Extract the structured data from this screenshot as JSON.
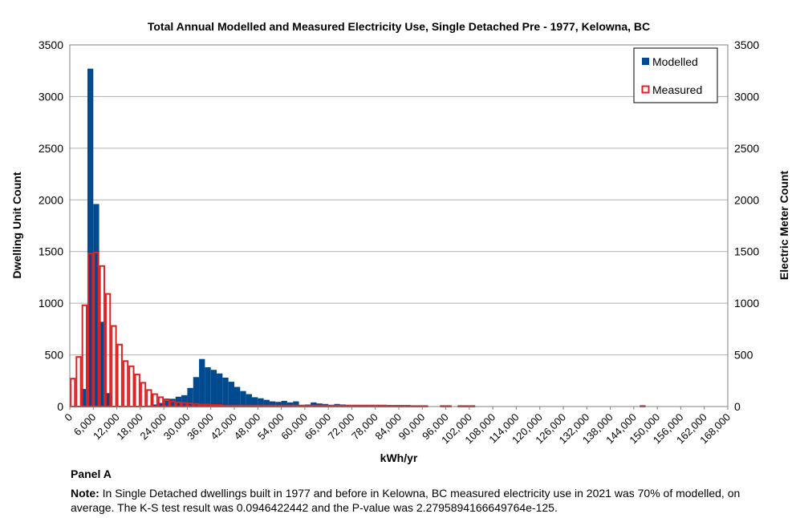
{
  "chart_data": {
    "type": "bar",
    "title": "Total Annual Modelled and Measured Electricity Use, Single Detached Pre - 1977, Kelowna, BC",
    "xlabel": "kWh/yr",
    "ylabel": "Dwelling Unit Count",
    "y2label": "Electric Meter Count",
    "bin_width": 1500,
    "xlim": [
      0,
      168000
    ],
    "ylim": [
      0,
      3500
    ],
    "y2lim": [
      0,
      3500
    ],
    "x_ticks": [
      "0",
      "6,000",
      "12,000",
      "18,000",
      "24,000",
      "30,000",
      "36,000",
      "42,000",
      "48,000",
      "54,000",
      "60,000",
      "66,000",
      "72,000",
      "78,000",
      "84,000",
      "90,000",
      "96,000",
      "102,000",
      "108,000",
      "114,000",
      "120,000",
      "126,000",
      "132,000",
      "138,000",
      "144,000",
      "150,000",
      "156,000",
      "162,000",
      "168,000"
    ],
    "y_ticks": [
      "0",
      "500",
      "1000",
      "1500",
      "2000",
      "2500",
      "3000",
      "3500"
    ],
    "grid": true,
    "legend_position": "top-right",
    "series": [
      {
        "name": "Modelled",
        "color": "#004a8f",
        "bin_start": [
          3000,
          4500,
          6000,
          7500,
          9000,
          18000,
          19500,
          21000,
          22500,
          24000,
          25500,
          27000,
          28500,
          30000,
          31500,
          33000,
          34500,
          36000,
          37500,
          39000,
          40500,
          42000,
          43500,
          45000,
          46500,
          48000,
          49500,
          51000,
          52500,
          54000,
          55500,
          57000,
          58500,
          60000,
          61500,
          63000,
          64500,
          66000,
          67500,
          69000,
          70500,
          72000,
          73500,
          75000,
          76500,
          78000,
          79500,
          81000,
          82500,
          84000,
          85500,
          87000,
          88500
        ],
        "values": [
          170,
          3270,
          1960,
          820,
          130,
          5,
          10,
          20,
          35,
          60,
          75,
          95,
          110,
          180,
          285,
          460,
          380,
          355,
          320,
          280,
          240,
          190,
          150,
          120,
          90,
          80,
          65,
          50,
          45,
          55,
          40,
          50,
          15,
          20,
          40,
          30,
          25,
          15,
          25,
          20,
          15,
          15,
          10,
          10,
          10,
          5,
          10,
          5,
          5,
          5,
          5,
          5,
          5
        ]
      },
      {
        "name": "Measured",
        "color": "#e02020",
        "bin_start": [
          0,
          1500,
          3000,
          4500,
          6000,
          7500,
          9000,
          10500,
          12000,
          13500,
          15000,
          16500,
          18000,
          19500,
          21000,
          22500,
          24000,
          25500,
          27000,
          28500,
          30000,
          31500,
          33000,
          34500,
          36000,
          37500,
          39000,
          40500,
          42000,
          43500,
          45000,
          46500,
          48000,
          49500,
          51000,
          52500,
          54000,
          55500,
          57000,
          58500,
          60000,
          61500,
          63000,
          64500,
          66000,
          67500,
          69000,
          70500,
          72000,
          73500,
          75000,
          76500,
          78000,
          79500,
          81000,
          82500,
          84000,
          85500,
          87000,
          88500,
          90000,
          94500,
          96000,
          99000,
          100500,
          102000,
          145500
        ],
        "values": [
          270,
          480,
          980,
          1480,
          1490,
          1360,
          1090,
          780,
          600,
          440,
          390,
          310,
          230,
          160,
          120,
          90,
          70,
          50,
          40,
          35,
          30,
          25,
          20,
          20,
          15,
          15,
          10,
          10,
          10,
          10,
          10,
          10,
          10,
          10,
          10,
          10,
          10,
          10,
          10,
          10,
          10,
          10,
          10,
          10,
          10,
          10,
          10,
          10,
          10,
          10,
          10,
          10,
          10,
          10,
          8,
          8,
          8,
          8,
          5,
          5,
          5,
          5,
          5,
          5,
          5,
          5,
          5
        ]
      }
    ]
  },
  "panel_label": "Panel A",
  "note": {
    "label": "Note:",
    "text": "In Single Detached dwellings built in 1977 and before in Kelowna, BC measured electricity use in 2021 was 70% of modelled, on average. The K-S test result was 0.0946422442 and the P-value was 2.2795894166649764e-125."
  }
}
